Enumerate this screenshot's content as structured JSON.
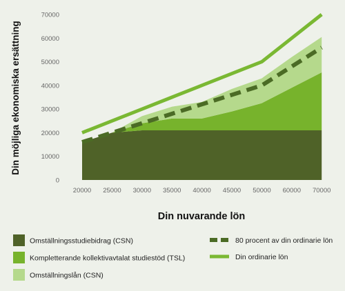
{
  "chart_data": {
    "type": "area",
    "ylabel": "Din möjliga ekonomiska ersättning",
    "xlabel": "Din nuvarande lön",
    "x": [
      20000,
      25000,
      30000,
      35000,
      40000,
      45000,
      50000,
      60000,
      70000
    ],
    "x_tick_labels": [
      "20000",
      "25000",
      "30000",
      "35000",
      "40000",
      "45000",
      "50000",
      "60000",
      "70000"
    ],
    "ylim": [
      0,
      70000
    ],
    "y_ticks": [
      0,
      10000,
      20000,
      30000,
      40000,
      50000,
      60000,
      70000
    ],
    "y_tick_labels": [
      "0",
      "10000",
      "20000",
      "30000",
      "40000",
      "50000",
      "60000",
      "70000"
    ],
    "grid": false,
    "legend_position": "bottom",
    "area_series": [
      {
        "name": "Omställningsstudiebidrag (CSN)",
        "color": "#4f6228",
        "values": [
          16000,
          20000,
          21000,
          21000,
          21000,
          21000,
          21000,
          21000,
          21000
        ]
      },
      {
        "name": "Kompletterande kollektivavtalat studiestöd (TSL)",
        "color": "#77b32c",
        "values": [
          0,
          0,
          3000,
          5000,
          5000,
          8000,
          11500,
          18000,
          24500
        ]
      },
      {
        "name": "Omställningslån (CSN)",
        "color": "#b5d98c",
        "values": [
          0,
          0,
          3000,
          5000,
          7000,
          9500,
          10500,
          13000,
          15000
        ]
      }
    ],
    "line_series": [
      {
        "name": "80 procent av din ordinarie lön",
        "color": "#4b6b25",
        "style": "dashed",
        "values": [
          16000,
          20000,
          24000,
          28000,
          32000,
          36000,
          40000,
          48000,
          56000
        ]
      },
      {
        "name": "Din ordinarie lön",
        "color": "#7ab833",
        "style": "solid",
        "values": [
          20000,
          25000,
          30000,
          35000,
          40000,
          45000,
          50000,
          60000,
          70000
        ]
      }
    ]
  }
}
